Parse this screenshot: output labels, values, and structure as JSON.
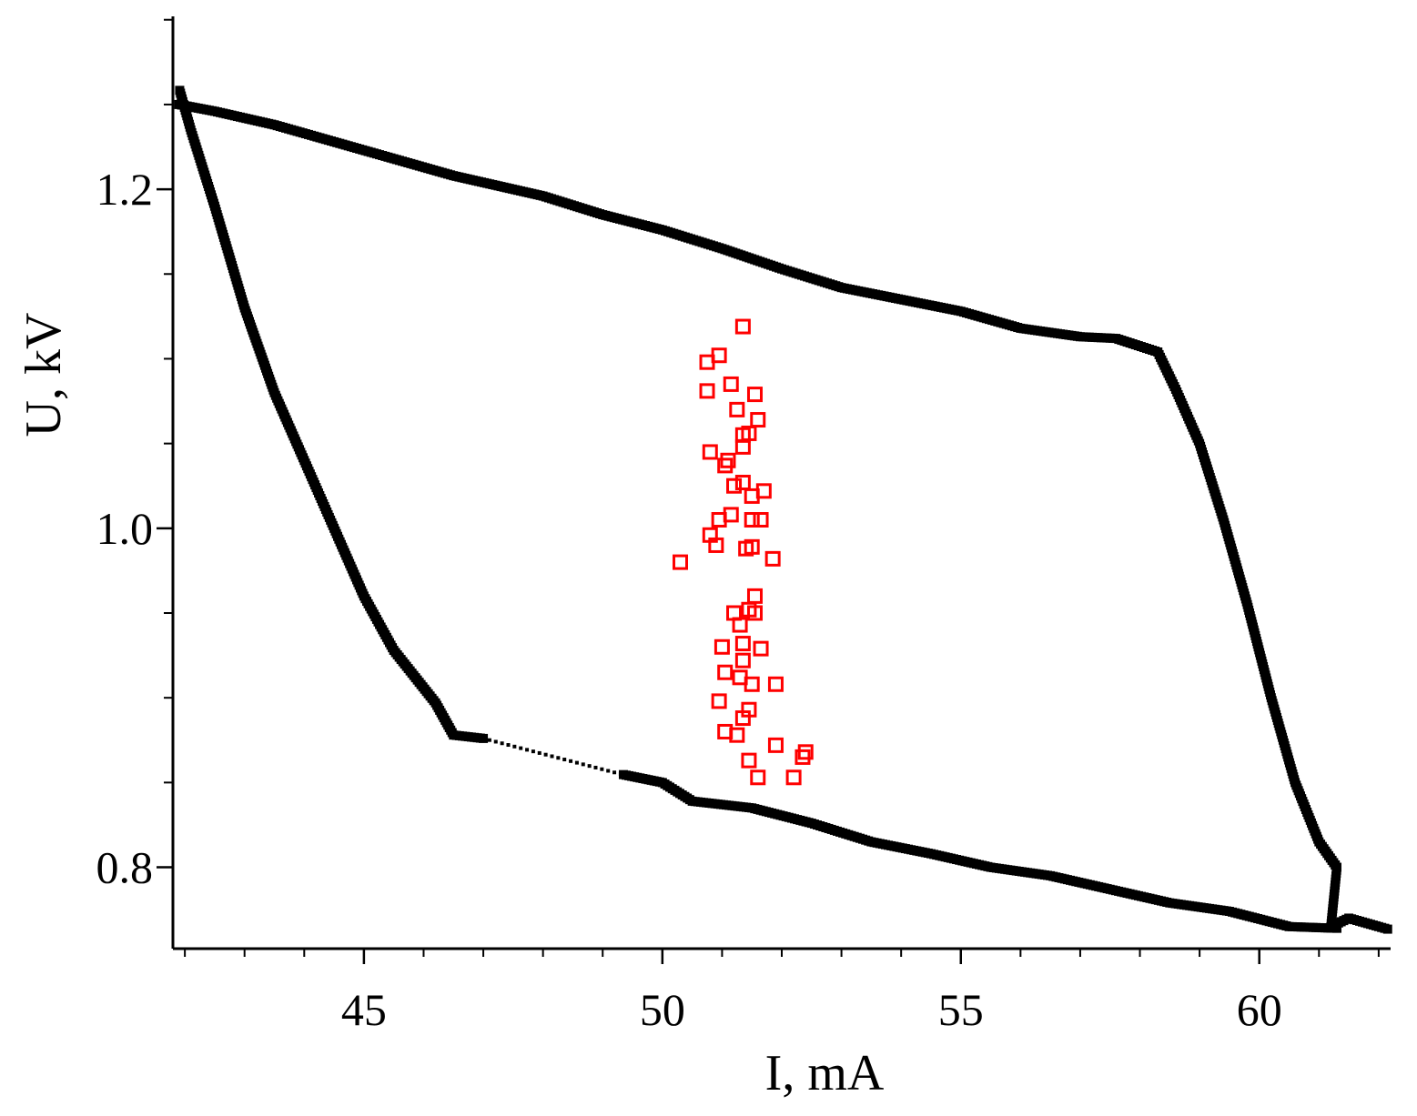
{
  "chart_data": {
    "type": "scatter",
    "xlabel": "I, mA",
    "ylabel": "U, kV",
    "xlim": [
      41.8,
      62.2
    ],
    "ylim": [
      0.752,
      1.302
    ],
    "x_ticks": [
      45,
      50,
      55,
      60
    ],
    "x_tick_labels": [
      "45",
      "50",
      "55",
      "60"
    ],
    "y_ticks": [
      0.8,
      1.0,
      1.2
    ],
    "y_tick_labels": [
      "0.8",
      "1.0",
      "1.2"
    ],
    "x_minor_step": 1,
    "y_minor_step": 0.1,
    "grid": false,
    "legend": "none",
    "colors": {
      "loop": "#000000",
      "points": "#ff0000"
    },
    "series": [
      {
        "marker": "filled-square",
        "color": "#000000",
        "segments": [
          {
            "style": "markers",
            "x": [
              41.9,
              42.5,
              43.5,
              44.5,
              45.5,
              46.5,
              48.0,
              49.0,
              50.0,
              51.0,
              52.0,
              53.0,
              54.0,
              55.0,
              56.0,
              57.0,
              57.6,
              58.3,
              58.6,
              59.0,
              59.4,
              59.8,
              60.2,
              60.6,
              61.0,
              61.3,
              61.2,
              61.5,
              62.0,
              62.2
            ],
            "y": [
              1.25,
              1.246,
              1.238,
              1.228,
              1.218,
              1.208,
              1.196,
              1.185,
              1.176,
              1.165,
              1.153,
              1.142,
              1.135,
              1.128,
              1.118,
              1.113,
              1.112,
              1.104,
              1.082,
              1.05,
              1.005,
              0.955,
              0.9,
              0.85,
              0.815,
              0.8,
              0.765,
              0.77,
              0.765,
              0.763
            ]
          },
          {
            "style": "markers",
            "x": [
              61.3,
              60.5,
              59.5,
              58.5,
              57.5,
              56.5,
              55.5,
              54.5,
              53.5,
              52.5,
              51.5,
              50.5,
              50.0,
              49.3
            ],
            "y": [
              0.764,
              0.765,
              0.774,
              0.779,
              0.787,
              0.795,
              0.8,
              0.808,
              0.815,
              0.826,
              0.835,
              0.839,
              0.85,
              0.855
            ]
          },
          {
            "style": "dotted",
            "x": [
              49.3,
              47.0
            ],
            "y": [
              0.855,
              0.876
            ]
          },
          {
            "style": "markers",
            "x": [
              47.0,
              46.5,
              46.2,
              45.5,
              45.0,
              44.5,
              44.0,
              43.5,
              43.0,
              42.5,
              42.1,
              41.9
            ],
            "y": [
              0.876,
              0.878,
              0.897,
              0.928,
              0.96,
              1.0,
              1.04,
              1.08,
              1.13,
              1.19,
              1.235,
              1.26
            ]
          }
        ]
      },
      {
        "marker": "open-square",
        "color": "#ff0000",
        "points": [
          [
            51.35,
            1.119
          ],
          [
            50.95,
            1.102
          ],
          [
            50.75,
            1.098
          ],
          [
            51.15,
            1.085
          ],
          [
            50.75,
            1.081
          ],
          [
            51.55,
            1.079
          ],
          [
            51.25,
            1.07
          ],
          [
            51.6,
            1.064
          ],
          [
            51.35,
            1.055
          ],
          [
            51.45,
            1.056
          ],
          [
            51.35,
            1.048
          ],
          [
            50.8,
            1.045
          ],
          [
            51.05,
            1.037
          ],
          [
            51.1,
            1.04
          ],
          [
            51.35,
            1.027
          ],
          [
            51.2,
            1.025
          ],
          [
            51.7,
            1.022
          ],
          [
            51.5,
            1.019
          ],
          [
            51.15,
            1.008
          ],
          [
            50.95,
            1.005
          ],
          [
            51.5,
            1.005
          ],
          [
            51.65,
            1.005
          ],
          [
            50.8,
            0.996
          ],
          [
            50.9,
            0.99
          ],
          [
            51.4,
            0.988
          ],
          [
            51.5,
            0.989
          ],
          [
            51.85,
            0.982
          ],
          [
            50.3,
            0.98
          ],
          [
            51.55,
            0.96
          ],
          [
            51.2,
            0.95
          ],
          [
            51.45,
            0.952
          ],
          [
            51.55,
            0.95
          ],
          [
            51.3,
            0.943
          ],
          [
            51.0,
            0.93
          ],
          [
            51.35,
            0.932
          ],
          [
            51.65,
            0.929
          ],
          [
            51.35,
            0.922
          ],
          [
            51.05,
            0.915
          ],
          [
            51.3,
            0.912
          ],
          [
            51.5,
            0.908
          ],
          [
            51.9,
            0.908
          ],
          [
            50.95,
            0.898
          ],
          [
            51.45,
            0.893
          ],
          [
            51.35,
            0.888
          ],
          [
            51.05,
            0.88
          ],
          [
            51.25,
            0.878
          ],
          [
            51.9,
            0.872
          ],
          [
            52.4,
            0.868
          ],
          [
            52.35,
            0.865
          ],
          [
            51.45,
            0.863
          ],
          [
            51.6,
            0.853
          ],
          [
            52.2,
            0.853
          ]
        ]
      }
    ]
  }
}
